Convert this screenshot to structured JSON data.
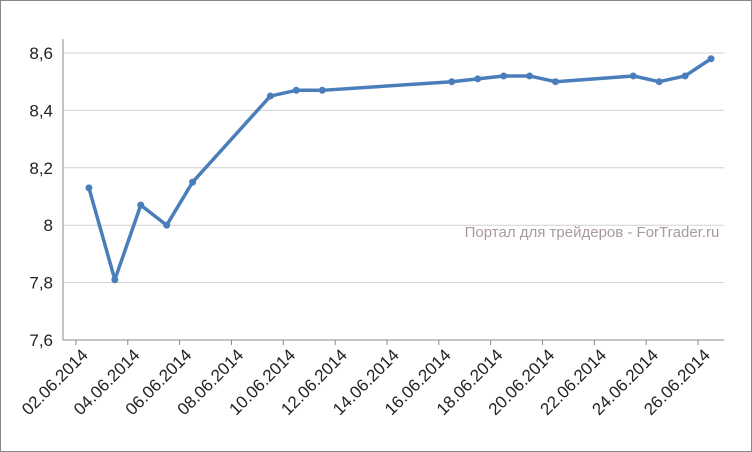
{
  "chart_data": {
    "type": "line",
    "watermark": "Портал для трейдеров - ForTrader.ru",
    "x": [
      "02.06.2014",
      "03.06.2014",
      "04.06.2014",
      "05.06.2014",
      "06.06.2014",
      "09.06.2014",
      "10.06.2014",
      "11.06.2014",
      "16.06.2014",
      "17.06.2014",
      "18.06.2014",
      "19.06.2014",
      "20.06.2014",
      "23.06.2014",
      "24.06.2014",
      "25.06.2014",
      "26.06.2014"
    ],
    "series": [
      {
        "color": "#4a7ebb",
        "values": [
          8.13,
          7.81,
          8.07,
          8.0,
          8.15,
          8.45,
          8.47,
          8.47,
          8.5,
          8.51,
          8.52,
          8.52,
          8.5,
          8.52,
          8.5,
          8.52,
          8.58
        ]
      }
    ],
    "xlim": [
      "01.06.2014",
      "26.06.2014"
    ],
    "xticks": [
      "02.06.2014",
      "04.06.2014",
      "06.06.2014",
      "08.06.2014",
      "10.06.2014",
      "12.06.2014",
      "14.06.2014",
      "16.06.2014",
      "18.06.2014",
      "20.06.2014",
      "22.06.2014",
      "24.06.2014",
      "26.06.2014"
    ],
    "ylim": [
      7.6,
      8.6
    ],
    "yticks": [
      {
        "value": 7.6,
        "label": "7,6"
      },
      {
        "value": 7.8,
        "label": "7,8"
      },
      8,
      {
        "value": 8.2,
        "label": "8,2"
      },
      {
        "value": 8.4,
        "label": "8,4"
      },
      {
        "value": 8.6,
        "label": "8,6"
      }
    ],
    "grid": true
  }
}
